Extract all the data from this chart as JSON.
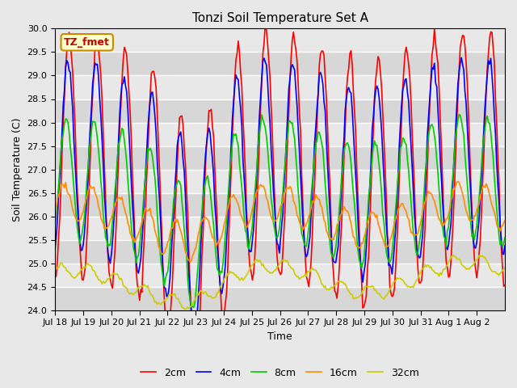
{
  "title": "Tonzi Soil Temperature Set A",
  "xlabel": "Time",
  "ylabel": "Soil Temperature (C)",
  "ylim": [
    24.0,
    30.0
  ],
  "yticks": [
    24.0,
    24.5,
    25.0,
    25.5,
    26.0,
    26.5,
    27.0,
    27.5,
    28.0,
    28.5,
    29.0,
    29.5,
    30.0
  ],
  "xtick_labels": [
    "Jul 18",
    "Jul 19",
    "Jul 20",
    "Jul 21",
    "Jul 22",
    "Jul 23",
    "Jul 24",
    "Jul 25",
    "Jul 26",
    "Jul 27",
    "Jul 28",
    "Jul 29",
    "Jul 30",
    "Jul 31",
    "Aug 1",
    "Aug 2"
  ],
  "legend_labels": [
    "2cm",
    "4cm",
    "8cm",
    "16cm",
    "32cm"
  ],
  "colors": {
    "2cm": "#ff0000",
    "4cm": "#0000ff",
    "8cm": "#00cc00",
    "16cm": "#ff8c00",
    "32cm": "#cccc00"
  },
  "annotation_text": "TZ_fmet",
  "annotation_color": "#cc0000",
  "annotation_bg": "#ffffcc",
  "annotation_border": "#cc8800",
  "bg_color": "#e8e8e8",
  "n_points": 384,
  "days": 16,
  "base_temp_2cm": 27.0,
  "amp_2cm": 2.6,
  "base_temp_4cm": 27.0,
  "amp_4cm": 2.0,
  "base_temp_8cm": 26.5,
  "amp_8cm": 1.3,
  "base_temp_16cm": 26.0,
  "amp_16cm": 0.4,
  "base_temp_32cm": 24.55,
  "amp_32cm": 0.15,
  "phase_2cm": 0.0,
  "phase_4cm": 0.3,
  "phase_8cm": 0.7,
  "phase_16cm": 1.2,
  "phase_32cm": 2.0
}
